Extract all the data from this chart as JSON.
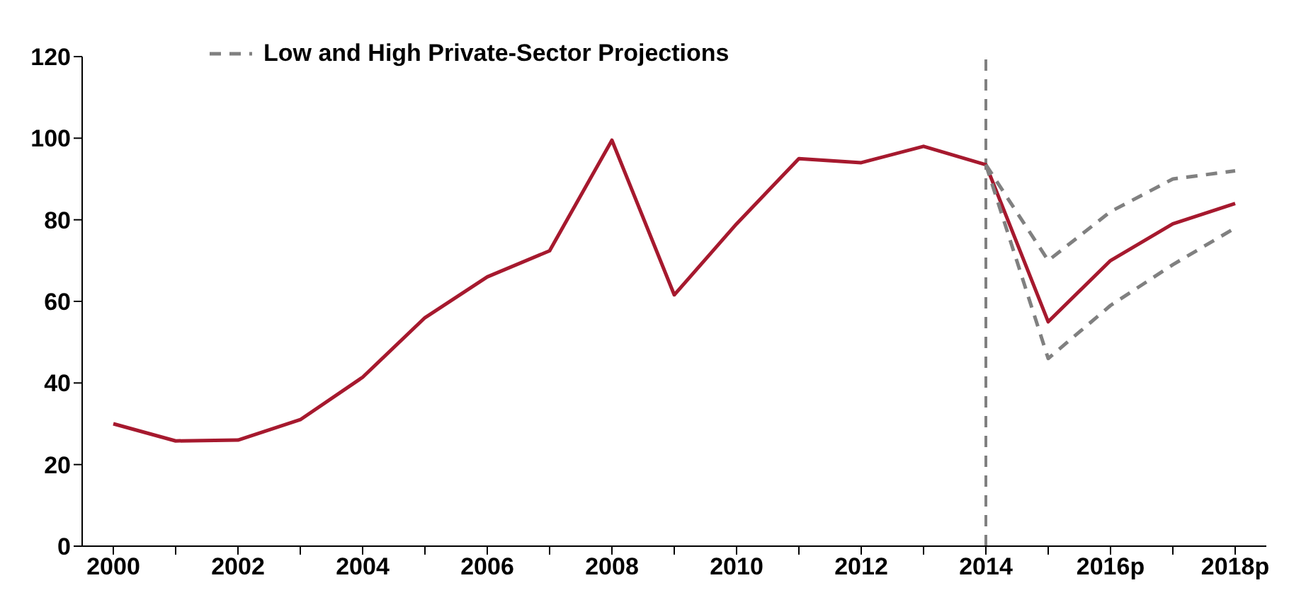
{
  "chart_data": {
    "type": "line",
    "xlim": [
      1999.5,
      2018.5
    ],
    "xticks": [
      2000,
      {
        "value": 2001,
        "label": null
      },
      2002,
      {
        "value": 2003,
        "label": null
      },
      2004,
      {
        "value": 2005,
        "label": null
      },
      2006,
      {
        "value": 2007,
        "label": null
      },
      2008,
      {
        "value": 2009,
        "label": null
      },
      2010,
      {
        "value": 2011,
        "label": null
      },
      2012,
      {
        "value": 2013,
        "label": null
      },
      2014,
      {
        "value": 2015,
        "label": null
      },
      {
        "value": 2016,
        "label": "2016p"
      },
      {
        "value": 2017,
        "label": null
      },
      {
        "value": 2018,
        "label": "2018p"
      }
    ],
    "ylim": [
      0,
      120
    ],
    "yticks": [
      0,
      20,
      40,
      60,
      80,
      100,
      120
    ],
    "grid": false,
    "legend": "top left",
    "marker": "none",
    "series": [
      {
        "color": "#a6192e",
        "line_style": "solid",
        "x": [
          2000,
          2001,
          2002,
          2003,
          2004,
          2005,
          2006,
          2007,
          2008,
          2009,
          2010,
          2011,
          2012,
          2013,
          2014,
          2015,
          2016,
          2017,
          2018
        ],
        "values": [
          30,
          25.8,
          26,
          31,
          41.4,
          56,
          66,
          72.4,
          99.5,
          61.6,
          79,
          95,
          94,
          98,
          93.5,
          55,
          70,
          79,
          84
        ]
      },
      {
        "name": "Low and High Private-Sector Projections",
        "color": "#808080",
        "line_style": "dashed",
        "x": [
          2014,
          2015,
          2016,
          2017,
          2018
        ],
        "values": [
          93.5,
          70,
          82,
          90,
          92
        ]
      },
      {
        "color": "#808080",
        "line_style": "dashed",
        "x": [
          2014,
          2015,
          2016,
          2017,
          2018
        ],
        "values": [
          93.5,
          46,
          59,
          69,
          78
        ]
      }
    ],
    "ref_lines": [
      {
        "axis": "x",
        "value": 2014,
        "color": "#808080",
        "line_style": "dashed"
      }
    ]
  }
}
